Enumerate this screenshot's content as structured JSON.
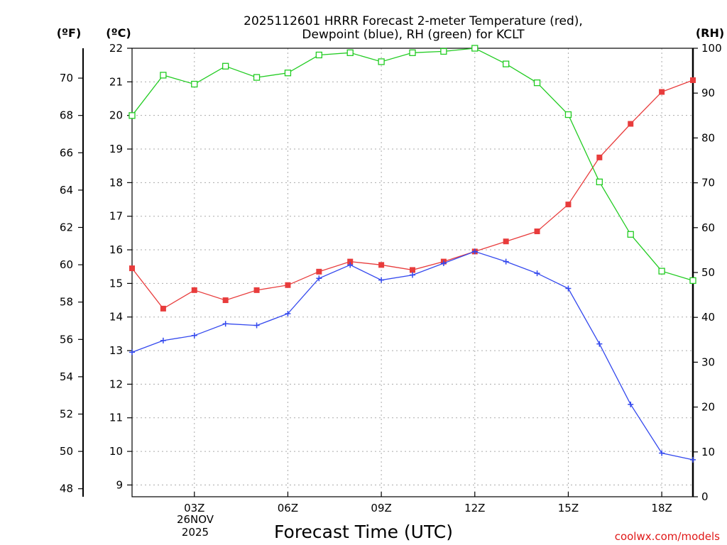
{
  "chart_data": {
    "type": "line",
    "title": "2025112601 HRRR Forecast 2-meter Temperature (red),",
    "subtitle": "Dewpoint (blue), RH (green) for KCLT",
    "unit_f": "(ºF)",
    "unit_c": "(ºC)",
    "unit_rh": "(RH)",
    "xlabel": "Forecast Time (UTC)",
    "credit": "coolwx.com/models",
    "date_line1": "26NOV",
    "date_line2": "2025",
    "x": [
      1,
      2,
      3,
      4,
      5,
      6,
      7,
      8,
      9,
      10,
      11,
      12,
      13,
      14,
      15,
      16,
      17,
      18,
      19
    ],
    "x_range": [
      1,
      19
    ],
    "x_ticks": [
      {
        "x": 3,
        "label": "03Z"
      },
      {
        "x": 6,
        "label": "06Z"
      },
      {
        "x": 9,
        "label": "09Z"
      },
      {
        "x": 12,
        "label": "12Z"
      },
      {
        "x": 15,
        "label": "15Z"
      },
      {
        "x": 18,
        "label": "18Z"
      }
    ],
    "celsius_axis": {
      "range": [
        8.65,
        22.0
      ],
      "ticks": [
        "9",
        "10",
        "11",
        "12",
        "13",
        "14",
        "15",
        "16",
        "17",
        "18",
        "19",
        "20",
        "21",
        "22"
      ]
    },
    "fahrenheit_axis": {
      "ticks": [
        "48",
        "50",
        "52",
        "54",
        "56",
        "58",
        "60",
        "62",
        "64",
        "66",
        "68",
        "70"
      ]
    },
    "rh_axis": {
      "range": [
        0,
        100
      ],
      "ticks": [
        "0",
        "10",
        "20",
        "30",
        "40",
        "50",
        "60",
        "70",
        "80",
        "90",
        "100"
      ]
    },
    "series": [
      {
        "name": "Temperature",
        "axis": "celsius",
        "color": "#e83c3c",
        "marker": "filled-square",
        "values": [
          15.45,
          14.25,
          14.8,
          14.5,
          14.8,
          14.95,
          15.35,
          15.65,
          15.55,
          15.4,
          15.65,
          15.95,
          16.25,
          16.55,
          17.35,
          18.75,
          19.75,
          20.7,
          21.05
        ]
      },
      {
        "name": "Dewpoint",
        "axis": "celsius",
        "color": "#3348ee",
        "marker": "plus",
        "values": [
          12.95,
          13.3,
          13.45,
          13.8,
          13.75,
          14.1,
          15.15,
          15.55,
          15.1,
          15.25,
          15.6,
          15.95,
          15.65,
          15.3,
          14.85,
          13.2,
          11.4,
          9.95,
          9.75
        ]
      },
      {
        "name": "RH",
        "axis": "rh",
        "color": "#22cc22",
        "marker": "open-square",
        "values": [
          85,
          94,
          92,
          96,
          93.5,
          94.5,
          98.5,
          99,
          97,
          99,
          99.3,
          100,
          96.5,
          92.3,
          85.2,
          70.2,
          58.5,
          50.3,
          48.2
        ]
      }
    ],
    "grid": true
  }
}
